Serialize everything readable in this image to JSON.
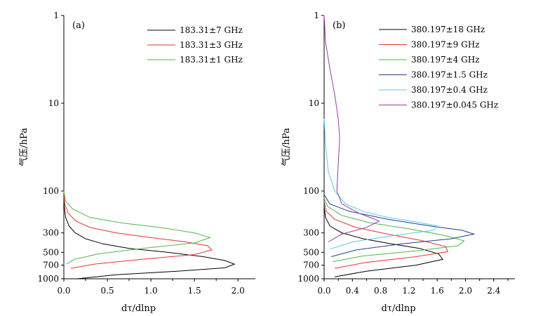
{
  "chart_data": [
    {
      "type": "line",
      "panel_label": "(a)",
      "xlabel": "dτ/dlnp",
      "ylabel": "气压/hPa",
      "xlim": [
        0,
        2.2
      ],
      "ylim": [
        1000,
        1
      ],
      "y_scale": "log",
      "x_ticks": [
        0.0,
        0.5,
        1.0,
        1.5,
        2.0
      ],
      "x_tick_labels": [
        "0.0",
        "0.5",
        "1.0",
        "1.5",
        "2.0"
      ],
      "y_ticks": [
        1,
        10,
        100,
        300,
        500,
        700,
        1000
      ],
      "y_tick_labels": [
        "1",
        "10",
        "100",
        "300",
        "500",
        "700",
        "1000"
      ],
      "legend_position": "top-right",
      "series": [
        {
          "name": "183.31±7 GHz",
          "color": "#000000",
          "x": [
            0,
            0.005,
            0.02,
            0.06,
            0.13,
            0.25,
            0.45,
            0.75,
            1.2,
            1.6,
            1.85,
            1.96,
            1.85,
            1.3,
            0.6,
            0.15
          ],
          "y": [
            100,
            150,
            200,
            250,
            300,
            350,
            400,
            450,
            500,
            560,
            620,
            680,
            750,
            820,
            900,
            1000
          ]
        },
        {
          "name": "183.31±3 GHz",
          "color": "#e8312f",
          "x": [
            0,
            0.01,
            0.05,
            0.14,
            0.3,
            0.6,
            1.0,
            1.4,
            1.65,
            1.7,
            1.5,
            0.9,
            0.35,
            0.08
          ],
          "y": [
            100,
            140,
            180,
            220,
            260,
            300,
            340,
            380,
            420,
            470,
            530,
            600,
            680,
            760
          ]
        },
        {
          "name": "183.31±1 GHz",
          "color": "#4db848",
          "x": [
            0,
            0.02,
            0.1,
            0.3,
            0.65,
            1.1,
            1.5,
            1.68,
            1.5,
            0.9,
            0.4,
            0.12,
            0.03
          ],
          "y": [
            100,
            130,
            160,
            200,
            230,
            260,
            300,
            340,
            390,
            450,
            520,
            600,
            680
          ]
        }
      ]
    },
    {
      "type": "line",
      "panel_label": "(b)",
      "xlabel": "dτ/dlnp",
      "ylabel": "气压/hPa",
      "xlim": [
        0,
        2.7
      ],
      "ylim": [
        1000,
        1
      ],
      "y_scale": "log",
      "x_ticks": [
        0.0,
        0.4,
        0.8,
        1.2,
        1.6,
        2.0,
        2.4
      ],
      "x_tick_labels": [
        "0.0",
        "0.4",
        "0.8",
        "1.2",
        "1.6",
        "2.0",
        "2.4"
      ],
      "y_ticks": [
        1,
        10,
        100,
        300,
        500,
        700,
        1000
      ],
      "y_tick_labels": [
        "1",
        "10",
        "100",
        "300",
        "500",
        "700",
        "1000"
      ],
      "legend_position": "top-right",
      "series": [
        {
          "name": "380.197±18 GHz",
          "color": "#000000",
          "x": [
            0,
            0.02,
            0.08,
            0.25,
            0.55,
            0.95,
            1.35,
            1.62,
            1.68,
            1.3,
            0.6,
            0.15
          ],
          "y": [
            150,
            200,
            250,
            300,
            350,
            400,
            450,
            520,
            600,
            700,
            820,
            950
          ]
        },
        {
          "name": "380.197±9 GHz",
          "color": "#e8312f",
          "x": [
            0,
            0.03,
            0.15,
            0.45,
            0.9,
            1.4,
            1.72,
            1.75,
            1.3,
            0.6,
            0.15
          ],
          "y": [
            130,
            170,
            210,
            260,
            310,
            370,
            430,
            490,
            560,
            650,
            760
          ]
        },
        {
          "name": "380.197±4 GHz",
          "color": "#4db848",
          "x": [
            0,
            0.05,
            0.25,
            0.65,
            1.2,
            1.7,
            1.98,
            1.9,
            1.3,
            0.55,
            0.12
          ],
          "y": [
            120,
            150,
            190,
            230,
            270,
            320,
            370,
            420,
            480,
            550,
            640
          ]
        },
        {
          "name": "380.197±1.5 GHz",
          "color": "#1f3f8f",
          "x": [
            0,
            0.08,
            0.35,
            0.9,
            1.5,
            1.95,
            2.12,
            1.8,
            1.1,
            0.45,
            0.1
          ],
          "y": [
            110,
            140,
            170,
            210,
            250,
            280,
            310,
            350,
            400,
            470,
            560
          ]
        },
        {
          "name": "380.197±0.4 GHz",
          "color": "#5bc8e8",
          "x": [
            0,
            0.02,
            0.06,
            0.15,
            0.3,
            0.55,
            0.9,
            1.3,
            1.6,
            1.55,
            1.0,
            0.4,
            0.08
          ],
          "y": [
            15,
            30,
            60,
            100,
            140,
            170,
            200,
            225,
            250,
            280,
            320,
            380,
            460
          ]
        },
        {
          "name": "380.197±0.045 GHz",
          "color": "#9a3d9a",
          "x": [
            0,
            0.02,
            0.08,
            0.15,
            0.2,
            0.22,
            0.2,
            0.18,
            0.25,
            0.5,
            0.78,
            0.6,
            0.25,
            0.06
          ],
          "y": [
            1,
            2,
            4,
            8,
            15,
            25,
            50,
            100,
            140,
            180,
            220,
            260,
            310,
            380
          ]
        }
      ]
    }
  ]
}
